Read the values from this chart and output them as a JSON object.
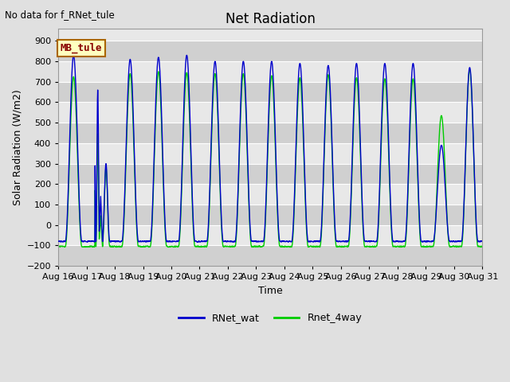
{
  "title": "Net Radiation",
  "xlabel": "Time",
  "ylabel": "Solar Radiation (W/m2)",
  "top_left_text": "No data for f_RNet_tule",
  "legend_box_label": "MB_tule",
  "ylim": [
    -200,
    960
  ],
  "yticks": [
    -200,
    -100,
    0,
    100,
    200,
    300,
    400,
    500,
    600,
    700,
    800,
    900
  ],
  "xtick_labels": [
    "Aug 16",
    "Aug 17",
    "Aug 18",
    "Aug 19",
    "Aug 20",
    "Aug 21",
    "Aug 22",
    "Aug 23",
    "Aug 24",
    "Aug 25",
    "Aug 26",
    "Aug 27",
    "Aug 28",
    "Aug 29",
    "Aug 30",
    "Aug 31"
  ],
  "line1_color": "#0000cc",
  "line2_color": "#00cc00",
  "line1_label": "RNet_wat",
  "line2_label": "Rnet_4way",
  "bg_color": "#e0e0e0",
  "plot_bg_color": "#e8e8e8",
  "alt_band_color": "#d0d0d0",
  "title_fontsize": 12,
  "label_fontsize": 9,
  "tick_fontsize": 8
}
